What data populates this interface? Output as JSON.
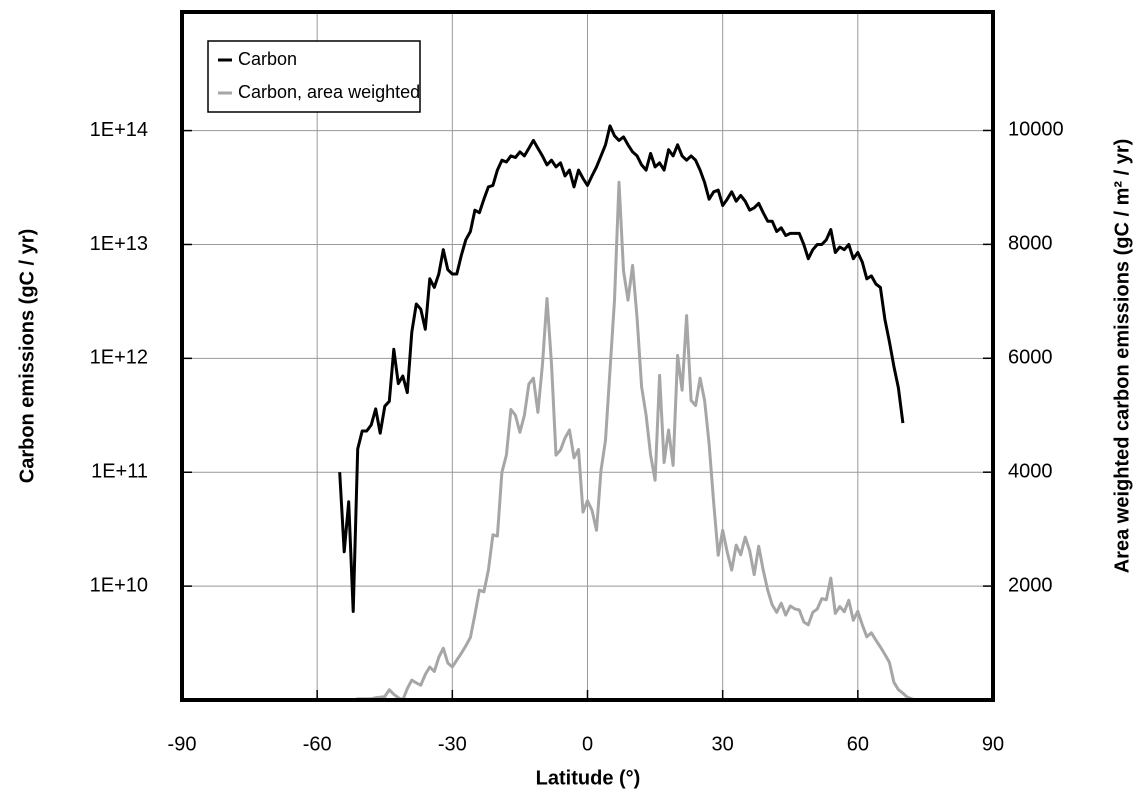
{
  "chart_data": {
    "type": "line",
    "xlabel": "Latitude   (°)",
    "ylabel": "Carbon emissions  (gC / yr)",
    "y2label": "Area weighted carbon emissions  (gC / m² / yr)",
    "xlim": [
      -90,
      90
    ],
    "xticks": [
      -90,
      -60,
      -30,
      0,
      30,
      60,
      90
    ],
    "ylim": [
      1000000000.0,
      1100000000000000.0
    ],
    "ylog": true,
    "yticks": [
      {
        "value": 10000000000.0,
        "label": "1E+10"
      },
      {
        "value": 100000000000.0,
        "label": "1E+11"
      },
      {
        "value": 1000000000000.0,
        "label": "1E+12"
      },
      {
        "value": 10000000000000.0,
        "label": "1E+13"
      },
      {
        "value": 100000000000000.0,
        "label": "1E+14"
      }
    ],
    "y2lim": [
      0,
      12080
    ],
    "y2ticks": [
      2000,
      4000,
      6000,
      8000,
      10000
    ],
    "grid": true,
    "legend": "upper left",
    "x": [
      -90,
      -89,
      -88,
      -87,
      -86,
      -85,
      -84,
      -83,
      -82,
      -81,
      -80,
      -79,
      -78,
      -77,
      -76,
      -75,
      -74,
      -73,
      -72,
      -71,
      -70,
      -69,
      -68,
      -67,
      -66,
      -65,
      -64,
      -63,
      -62,
      -61,
      -60,
      -59,
      -58,
      -57,
      -56,
      -55,
      -54,
      -53,
      -52,
      -51,
      -50,
      -49,
      -48,
      -47,
      -46,
      -45,
      -44,
      -43,
      -42,
      -41,
      -40,
      -39,
      -38,
      -37,
      -36,
      -35,
      -34,
      -33,
      -32,
      -31,
      -30,
      -29,
      -28,
      -27,
      -26,
      -25,
      -24,
      -23,
      -22,
      -21,
      -20,
      -19,
      -18,
      -17,
      -16,
      -15,
      -14,
      -13,
      -12,
      -11,
      -10,
      -9,
      -8,
      -7,
      -6,
      -5,
      -4,
      -3,
      -2,
      -1,
      0,
      1,
      2,
      3,
      4,
      5,
      6,
      7,
      8,
      9,
      10,
      11,
      12,
      13,
      14,
      15,
      16,
      17,
      18,
      19,
      20,
      21,
      22,
      23,
      24,
      25,
      26,
      27,
      28,
      29,
      30,
      31,
      32,
      33,
      34,
      35,
      36,
      37,
      38,
      39,
      40,
      41,
      42,
      43,
      44,
      45,
      46,
      47,
      48,
      49,
      50,
      51,
      52,
      53,
      54,
      55,
      56,
      57,
      58,
      59,
      60,
      61,
      62,
      63,
      64,
      65,
      66,
      67,
      68,
      69,
      70,
      71,
      72,
      73,
      74,
      75,
      76,
      77,
      78,
      79,
      80,
      81,
      82,
      83,
      84,
      85,
      86,
      87,
      88,
      89,
      90
    ],
    "series": [
      {
        "name": "Carbon",
        "color": "#000000",
        "axis": "y",
        "values": [
          null,
          null,
          null,
          null,
          null,
          null,
          null,
          null,
          null,
          null,
          null,
          null,
          null,
          null,
          null,
          null,
          null,
          null,
          null,
          null,
          null,
          null,
          null,
          null,
          null,
          null,
          null,
          null,
          null,
          null,
          null,
          null,
          null,
          null,
          null,
          100000000000.0,
          20000000000.0,
          55000000000.0,
          6000000000.0,
          160000000000.0,
          230000000000.0,
          230000000000.0,
          260000000000.0,
          360000000000.0,
          220000000000.0,
          380000000000.0,
          420000000000.0,
          1200000000000.0,
          600000000000.0,
          700000000000.0,
          500000000000.0,
          1700000000000.0,
          3000000000000.0,
          2700000000000.0,
          1800000000000.0,
          5000000000000.0,
          4200000000000.0,
          5500000000000.0,
          9000000000000.0,
          6000000000000.0,
          5500000000000.0,
          5500000000000.0,
          8000000000000.0,
          11000000000000.0,
          13000000000000.0,
          20000000000000.0,
          19000000000000.0,
          25000000000000.0,
          32000000000000.0,
          33000000000000.0,
          45000000000000.0,
          55000000000000.0,
          53000000000000.0,
          60000000000000.0,
          58000000000000.0,
          65000000000000.0,
          60000000000000.0,
          70000000000000.0,
          82000000000000.0,
          70000000000000.0,
          60000000000000.0,
          50000000000000.0,
          55000000000000.0,
          48000000000000.0,
          52000000000000.0,
          40000000000000.0,
          45000000000000.0,
          32000000000000.0,
          45000000000000.0,
          38000000000000.0,
          33000000000000.0,
          40000000000000.0,
          48000000000000.0,
          60000000000000.0,
          75000000000000.0,
          110000000000000.0,
          90000000000000.0,
          82000000000000.0,
          88000000000000.0,
          75000000000000.0,
          65000000000000.0,
          60000000000000.0,
          50000000000000.0,
          45000000000000.0,
          63000000000000.0,
          48000000000000.0,
          52000000000000.0,
          45000000000000.0,
          68000000000000.0,
          60000000000000.0,
          75000000000000.0,
          60000000000000.0,
          55000000000000.0,
          60000000000000.0,
          55000000000000.0,
          45000000000000.0,
          35000000000000.0,
          25000000000000.0,
          29000000000000.0,
          30000000000000.0,
          22000000000000.0,
          25000000000000.0,
          29000000000000.0,
          24000000000000.0,
          27000000000000.0,
          24000000000000.0,
          20000000000000.0,
          21000000000000.0,
          23000000000000.0,
          19000000000000.0,
          16000000000000.0,
          16000000000000.0,
          13000000000000.0,
          14000000000000.0,
          12000000000000.0,
          12500000000000.0,
          12500000000000.0,
          12500000000000.0,
          10000000000000.0,
          7500000000000.0,
          9000000000000.0,
          10000000000000.0,
          10000000000000.0,
          11000000000000.0,
          13500000000000.0,
          8500000000000.0,
          9500000000000.0,
          9000000000000.0,
          10000000000000.0,
          7500000000000.0,
          8500000000000.0,
          7000000000000.0,
          5000000000000.0,
          5300000000000.0,
          4500000000000.0,
          4200000000000.0,
          2200000000000.0,
          1400000000000.0,
          850000000000.0,
          550000000000.0,
          270000000000.0,
          null,
          null,
          null,
          null,
          null,
          null,
          null,
          null,
          null,
          null,
          null,
          null,
          null,
          null,
          null,
          null,
          null,
          null,
          null,
          null
        ]
      },
      {
        "name": "Carbon, area weighted",
        "color": "#a6a6a6",
        "axis": "y2",
        "values": [
          0,
          0,
          0,
          0,
          0,
          0,
          0,
          0,
          0,
          0,
          0,
          0,
          0,
          0,
          0,
          0,
          0,
          0,
          0,
          0,
          0,
          0,
          0,
          0,
          0,
          0,
          0,
          0,
          0,
          0,
          0,
          0,
          0,
          0,
          0,
          0,
          0,
          0,
          0,
          20,
          20,
          20,
          20,
          40,
          50,
          60,
          180,
          100,
          40,
          0,
          200,
          350,
          300,
          260,
          450,
          580,
          500,
          750,
          910,
          650,
          580,
          700,
          820,
          950,
          1100,
          1500,
          1930,
          1900,
          2280,
          2900,
          2880,
          4000,
          4300,
          5100,
          5000,
          4700,
          5000,
          5550,
          5650,
          5050,
          5880,
          7050,
          5900,
          4300,
          4390,
          4600,
          4740,
          4250,
          4400,
          3300,
          3500,
          3330,
          2980,
          4030,
          4560,
          5790,
          7020,
          9090,
          7540,
          7020,
          7630,
          6700,
          5500,
          5000,
          4300,
          3860,
          5700,
          4170,
          4740,
          4120,
          6050,
          5440,
          6750,
          5260,
          5170,
          5650,
          5260,
          4500,
          3460,
          2540,
          2980,
          2600,
          2280,
          2720,
          2550,
          2860,
          2620,
          2200,
          2700,
          2280,
          1930,
          1670,
          1540,
          1700,
          1490,
          1650,
          1600,
          1580,
          1370,
          1320,
          1540,
          1600,
          1780,
          1760,
          2140,
          1520,
          1640,
          1550,
          1750,
          1400,
          1560,
          1320,
          1110,
          1180,
          1050,
          930,
          800,
          660,
          310,
          180,
          120,
          50,
          20,
          0,
          0,
          0,
          0,
          0,
          0,
          0,
          0,
          0,
          0,
          0,
          0,
          0,
          0,
          0,
          0,
          0,
          0
        ]
      }
    ]
  }
}
